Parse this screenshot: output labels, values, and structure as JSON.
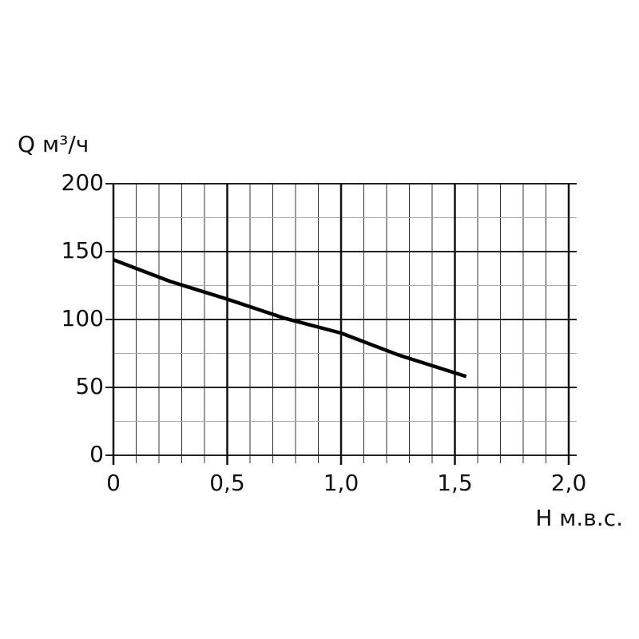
{
  "chart_data": {
    "type": "line",
    "x_label": "H м.в.с.",
    "y_label": "Q м³/ч",
    "x": [
      0,
      0.25,
      0.5,
      0.75,
      1.0,
      1.25,
      1.55
    ],
    "series": [
      {
        "color": "#000000",
        "values": [
          144,
          128,
          115,
          101,
          90,
          74,
          58
        ]
      }
    ],
    "xlim": [
      0,
      2.0
    ],
    "xticks": [
      0,
      {
        "value": 0.5,
        "label": "0,5"
      },
      {
        "value": 1.0,
        "label": "1,0"
      },
      {
        "value": 1.5,
        "label": "1,5"
      },
      {
        "value": 2.0,
        "label": "2,0"
      }
    ],
    "xminorticks": [
      0.1,
      0.2,
      0.3,
      0.4,
      0.6,
      0.7,
      0.8,
      0.9,
      1.1,
      1.2,
      1.3,
      1.4,
      1.6,
      1.7,
      1.8,
      1.9
    ],
    "ylim": [
      0,
      200
    ],
    "yticks": [
      0,
      50,
      100,
      150,
      200
    ],
    "yminorticks": [
      25,
      75,
      125,
      175
    ],
    "grid": true
  }
}
